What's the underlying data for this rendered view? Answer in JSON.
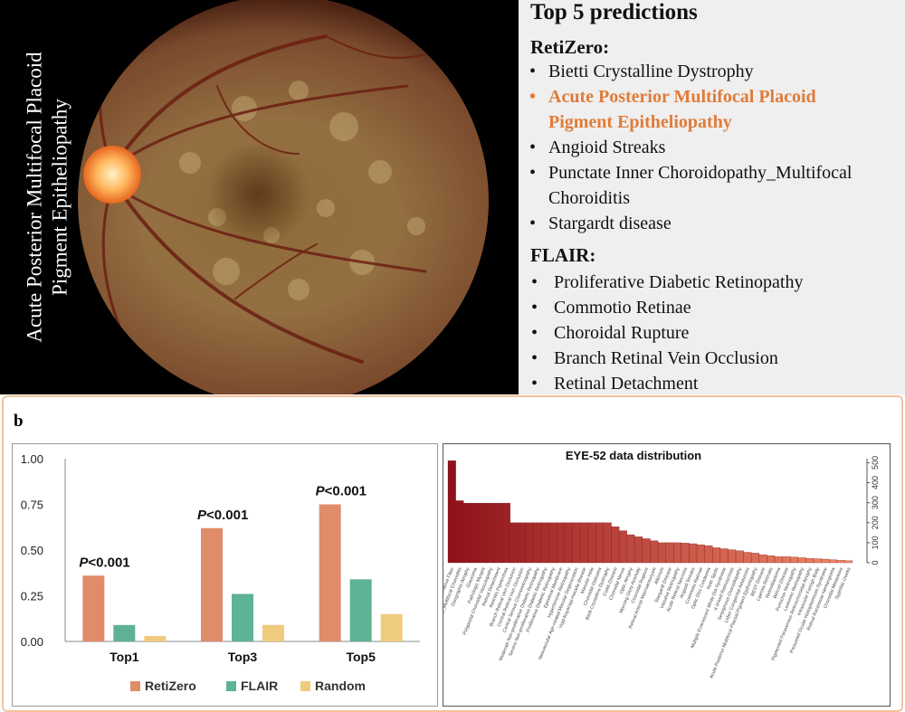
{
  "fundus": {
    "label_line1": "Acute Posterior Multifocal Placoid",
    "label_line2": "Pigment Epitheliopathy"
  },
  "predictions": {
    "title": "Top 5 predictions",
    "retizero": {
      "heading": "RetiZero:",
      "items": [
        {
          "line1": "Bietti Crystalline Dystrophy",
          "line2": ""
        },
        {
          "line1": "Acute Posterior Multifocal Placoid",
          "line2": "Pigment Epitheliopathy"
        },
        {
          "line1": "Angioid Streaks",
          "line2": ""
        },
        {
          "line1": "Punctate Inner Choroidopathy_Multifocal",
          "line2": "Choroiditis"
        },
        {
          "line1": "Stargardt disease",
          "line2": ""
        }
      ]
    },
    "flair": {
      "heading": "FLAIR:",
      "items": [
        "Proliferative Diabetic Retinopathy",
        "Commotio Retinae",
        "Choroidal Rupture",
        "Branch Retinal Vein Occlusion",
        "Retinal Detachment"
      ]
    },
    "bullet": "•",
    "highlight_color": "#e07b39"
  },
  "panel_b": {
    "label": "b"
  },
  "chart_data": [
    {
      "type": "bar",
      "categories": [
        "Top1",
        "Top3",
        "Top5"
      ],
      "series": [
        {
          "name": "RetiZero",
          "color": "#e08b6a",
          "values": [
            0.36,
            0.62,
            0.75
          ]
        },
        {
          "name": "FLAIR",
          "color": "#5eb394",
          "values": [
            0.09,
            0.26,
            0.34
          ]
        },
        {
          "name": "Random",
          "color": "#efcb7d",
          "values": [
            0.03,
            0.09,
            0.15
          ]
        }
      ],
      "annotations": [
        {
          "category": "Top1",
          "italic": "P",
          "text": "<0.001"
        },
        {
          "category": "Top3",
          "italic": "P",
          "text": "<0.001"
        },
        {
          "category": "Top5",
          "italic": "P",
          "text": "<0.001"
        }
      ],
      "ylim": [
        0,
        1
      ],
      "yticks": [
        "0.00",
        "0.25",
        "0.50",
        "0.75",
        "1.00"
      ],
      "legend_position": "bottom",
      "grid": false
    },
    {
      "type": "bar",
      "title": "EYE-52 data distribution",
      "ylim": [
        0,
        520
      ],
      "yticks": [
        "0",
        "100",
        "200",
        "300",
        "400",
        "500"
      ],
      "y_axis_side": "right",
      "gradient_colors": [
        "#8e1219",
        "#f38a6a"
      ],
      "categories": [
        "Myelinated Nerve Fiber",
        "Punctate Inner Choroidopathy_Multifocal Choroiditis",
        "Geographic Atrophy",
        "Glaucoma",
        "Pathologic Myopia",
        "Polypoidal Choroidal Vasculopathy",
        "Retinal Detachment",
        "Retinitis Pigmentosa",
        "Branch Retinal Vein Occlusion",
        "Central Retinal Vein Occlusion",
        "Central Serous Chorioretinopathy",
        "Moderate Non-proliferative Diabetic Retinopathy",
        "Severe Non-proliferative Diabetic Retinopathy",
        "Proliferative Diabetic Retinopathy",
        "Epiretinal Membrane",
        "Hypertensive Retinopathy",
        "Neovascular Age-related Macular Degeneration",
        "Vogt-Koyanagi-Harada disease",
        "Macular Hole",
        "Choroidal Osteoma",
        "Bietti Crystalline Dystrophy",
        "Coats Disease",
        "Choroidal Nevus",
        "Optic Atrophy",
        "Morning Glory Anomaly",
        "Choroidal Rupture",
        "Retinal Arterial Macroaneurysm",
        "Albinism",
        "Stargardt Disease",
        "Valsalva Retinopathy",
        "Acute Retinal Necrosis",
        "Angioid Streaks",
        "Commotio Retinae",
        "Optic Disc Coloboma",
        "Roth Spots",
        "Multiple Evanescent White Dot Syndrome",
        "X-linked Retinoschisis",
        "Serpiginous Choroidopathy",
        "Leber Congenital Amaurosis",
        "Acute Posterior Multifocal Placoid Pigment Epitheliopathy",
        "BEST Disease",
        "Lipemia Retinalis",
        "Retinoblastoma",
        "Behcet Disease",
        "Purtscher Retinopathy",
        "Leukemic Retinopathy",
        "Pigmented Paravenous Retinochoroidal Atrophy",
        "Intraocular Foreign Body",
        "Presumed Ocular Histoplasmosis Syndrome",
        "Retinal Racemose Hemangioma",
        "Choroidal Metastasis",
        "Syphilitic Uveitis"
      ],
      "values": [
        510,
        310,
        298,
        298,
        298,
        298,
        298,
        298,
        200,
        200,
        200,
        200,
        200,
        200,
        200,
        200,
        200,
        200,
        200,
        200,
        200,
        180,
        160,
        140,
        130,
        120,
        110,
        100,
        100,
        100,
        98,
        95,
        90,
        85,
        75,
        70,
        65,
        60,
        52,
        48,
        40,
        35,
        30,
        30,
        28,
        25,
        22,
        20,
        18,
        15,
        12,
        10
      ]
    }
  ]
}
